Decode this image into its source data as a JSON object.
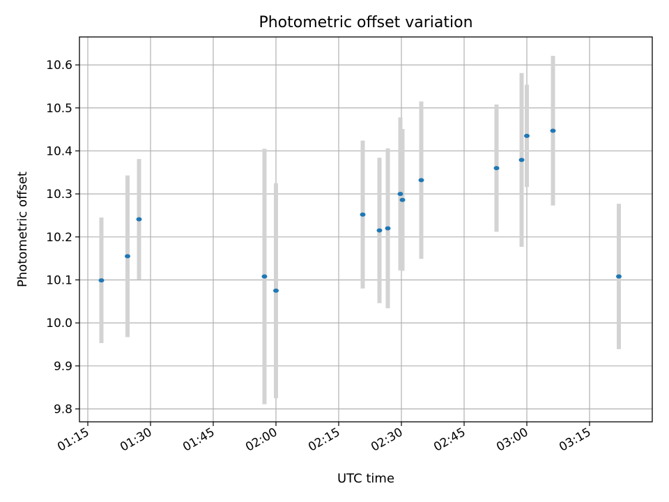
{
  "chart_data": {
    "type": "scatter",
    "title": "Photometric offset variation",
    "xlabel": "UTC time",
    "ylabel": "Photometric offset",
    "xlim": [
      "01:13",
      "03:30"
    ],
    "ylim": [
      9.77,
      10.665
    ],
    "grid": true,
    "x_tick_labels": [
      "01:15",
      "01:30",
      "01:45",
      "02:00",
      "02:15",
      "02:30",
      "02:45",
      "03:00",
      "03:15"
    ],
    "y_tick_labels": [
      "9.8",
      "9.9",
      "10.0",
      "10.1",
      "10.2",
      "10.3",
      "10.4",
      "10.5",
      "10.6"
    ],
    "y_ticks": [
      9.8,
      9.9,
      10.0,
      10.1,
      10.2,
      10.3,
      10.4,
      10.5,
      10.6
    ],
    "colors": {
      "points": "#1f77b4",
      "error_bars": "#d3d3d3",
      "grid": "#b0b0b0"
    },
    "points": [
      {
        "x": "01:18:15",
        "y": 10.099,
        "err": 0.146
      },
      {
        "x": "01:24:30",
        "y": 10.155,
        "err": 0.188
      },
      {
        "x": "01:27:15",
        "y": 10.241,
        "err": 0.14
      },
      {
        "x": "01:57:15",
        "y": 10.108,
        "err": 0.297
      },
      {
        "x": "02:00:00",
        "y": 10.075,
        "err": 0.25
      },
      {
        "x": "02:20:45",
        "y": 10.252,
        "err": 0.172
      },
      {
        "x": "02:24:45",
        "y": 10.215,
        "err": 0.169
      },
      {
        "x": "02:26:45",
        "y": 10.22,
        "err": 0.186
      },
      {
        "x": "02:29:45",
        "y": 10.3,
        "err": 0.178
      },
      {
        "x": "02:30:15",
        "y": 10.286,
        "err": 0.165
      },
      {
        "x": "02:34:45",
        "y": 10.332,
        "err": 0.183
      },
      {
        "x": "02:52:45",
        "y": 10.36,
        "err": 0.148
      },
      {
        "x": "02:58:45",
        "y": 10.379,
        "err": 0.202
      },
      {
        "x": "03:00:00",
        "y": 10.435,
        "err": 0.119
      },
      {
        "x": "03:06:15",
        "y": 10.447,
        "err": 0.174
      },
      {
        "x": "03:22:00",
        "y": 10.108,
        "err": 0.169
      }
    ]
  }
}
